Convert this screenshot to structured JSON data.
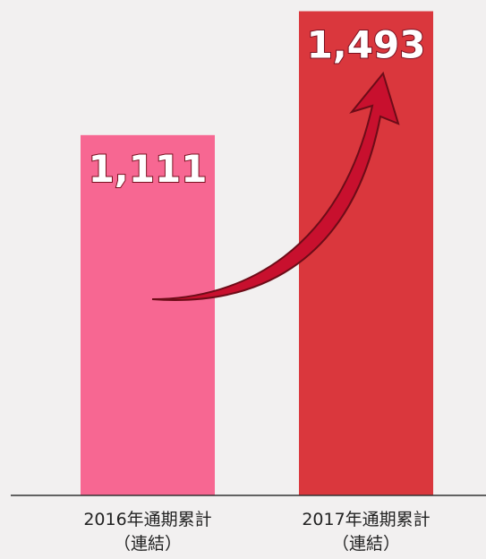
{
  "chart_data": {
    "type": "bar",
    "categories": [
      "2016年通期累計\n（連結）",
      "2017年通期累計\n（連結）"
    ],
    "values": [
      1111,
      1493
    ],
    "value_labels": [
      "1,111",
      "1,493"
    ],
    "colors": [
      "#f76792",
      "#da373d"
    ],
    "ylim": [
      0,
      1500
    ]
  }
}
